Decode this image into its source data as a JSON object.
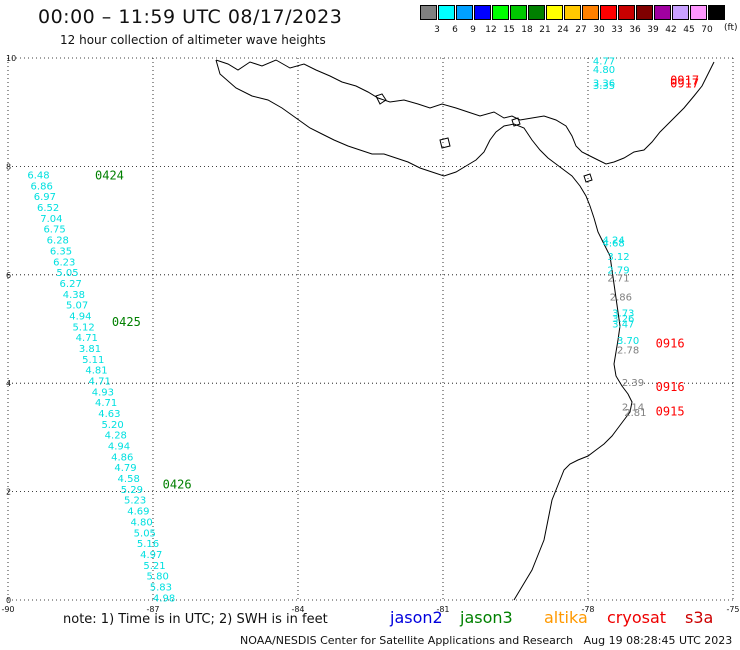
{
  "title": "00:00 – 11:59 UTC 08/17/2023",
  "subtitle": "12 hour collection of altimeter wave heights",
  "legend": {
    "unit_label": "(ft)",
    "bins": [
      {
        "label": "3",
        "color": "#808080"
      },
      {
        "label": "6",
        "color": "#00ffff"
      },
      {
        "label": "9",
        "color": "#00a0ff"
      },
      {
        "label": "12",
        "color": "#0000ff"
      },
      {
        "label": "15",
        "color": "#00ff00"
      },
      {
        "label": "18",
        "color": "#00c800"
      },
      {
        "label": "21",
        "color": "#008000"
      },
      {
        "label": "24",
        "color": "#ffff00"
      },
      {
        "label": "27",
        "color": "#ffc800"
      },
      {
        "label": "30",
        "color": "#ff8000"
      },
      {
        "label": "33",
        "color": "#ff0000"
      },
      {
        "label": "36",
        "color": "#c80000"
      },
      {
        "label": "39",
        "color": "#800000"
      },
      {
        "label": "42",
        "color": "#a000a0"
      },
      {
        "label": "45",
        "color": "#c8a0ff"
      },
      {
        "label": "70",
        "color": "#ff96ff"
      },
      {
        "label": "",
        "color": "#000000"
      }
    ]
  },
  "axes": {
    "x_ticks": [
      "-90",
      "-87",
      "-84",
      "-81",
      "-78",
      "-75"
    ],
    "y_ticks": [
      "10",
      "8",
      "6",
      "4",
      "2",
      "0"
    ],
    "x_range": [
      -90,
      -75
    ],
    "y_range": [
      0,
      10
    ]
  },
  "tracks": [
    {
      "values": [
        "6.48",
        "6.86",
        "6.97",
        "6.52",
        "7.04",
        "6.75",
        "6.28",
        "6.35",
        "6.23",
        "5.05",
        "6.27",
        "4.38",
        "5.07",
        "4.94",
        "5.12",
        "4.71",
        "3.81",
        "5.11",
        "4.81",
        "4.71",
        "4.93",
        "4.71",
        "4.63",
        "5.20",
        "4.28",
        "4.94",
        "4.86",
        "4.79",
        "4.58",
        "5.29",
        "5.23",
        "4.69",
        "4.80",
        "5.05",
        "5.16",
        "4.97",
        "5.21",
        "5.80",
        "5.83",
        "4.98"
      ],
      "color": "#00e0e0",
      "lon_start": -89.6,
      "lat_start": 7.85,
      "lon_end": -87.0,
      "lat_end": 0.05
    }
  ],
  "time_labels": [
    {
      "text": "0424",
      "color": "#008000",
      "lon": -88.2,
      "lat": 7.85
    },
    {
      "text": "0425",
      "color": "#008000",
      "lon": -87.85,
      "lat": 5.15
    },
    {
      "text": "0426",
      "color": "#008000",
      "lon": -86.8,
      "lat": 2.15
    },
    {
      "text": "0917",
      "color": "#ff0000",
      "lon": -76.3,
      "lat": 9.6
    },
    {
      "text": "0917",
      "color": "#ff0000",
      "lon": -76.3,
      "lat": 9.55
    },
    {
      "text": "0916",
      "color": "#ff0000",
      "lon": -76.6,
      "lat": 4.75
    },
    {
      "text": "0916",
      "color": "#ff0000",
      "lon": -76.6,
      "lat": 3.95
    },
    {
      "text": "0915",
      "color": "#ff0000",
      "lon": -76.6,
      "lat": 3.5
    }
  ],
  "coastal_values": [
    {
      "text": "4.77",
      "color": "#00e0e0",
      "lon": -77.9,
      "lat": 9.95
    },
    {
      "text": "4.80",
      "color": "#00e0e0",
      "lon": -77.9,
      "lat": 9.8
    },
    {
      "text": "3.36",
      "color": "#00e0e0",
      "lon": -77.9,
      "lat": 9.55
    },
    {
      "text": "3.35",
      "color": "#00e0e0",
      "lon": -77.9,
      "lat": 9.5
    },
    {
      "text": "4.24",
      "color": "#00e0e0",
      "lon": -77.7,
      "lat": 6.65
    },
    {
      "text": "4.68",
      "color": "#00e0e0",
      "lon": -77.7,
      "lat": 6.6
    },
    {
      "text": "3.12",
      "color": "#00e0e0",
      "lon": -77.6,
      "lat": 6.35
    },
    {
      "text": "2.79",
      "color": "#00e0e0",
      "lon": -77.6,
      "lat": 6.1
    },
    {
      "text": "2.71",
      "color": "#808080",
      "lon": -77.6,
      "lat": 5.95
    },
    {
      "text": "2.86",
      "color": "#808080",
      "lon": -77.55,
      "lat": 5.6
    },
    {
      "text": "3.73",
      "color": "#00e0e0",
      "lon": -77.5,
      "lat": 5.3
    },
    {
      "text": "3.26",
      "color": "#00e0e0",
      "lon": -77.5,
      "lat": 5.2
    },
    {
      "text": "3.47",
      "color": "#00e0e0",
      "lon": -77.5,
      "lat": 5.1
    },
    {
      "text": "3.70",
      "color": "#00e0e0",
      "lon": -77.4,
      "lat": 4.8
    },
    {
      "text": "2.78",
      "color": "#808080",
      "lon": -77.4,
      "lat": 4.62
    },
    {
      "text": "2.39",
      "color": "#808080",
      "lon": -77.3,
      "lat": 4.02
    },
    {
      "text": "2.14",
      "color": "#808080",
      "lon": -77.3,
      "lat": 3.57
    },
    {
      "text": "2.81",
      "color": "#808080",
      "lon": -77.25,
      "lat": 3.47
    }
  ],
  "note": "note: 1) Time is in UTC; 2) SWH is in feet",
  "satellites": [
    {
      "name": "jason2",
      "color": "#0000dd"
    },
    {
      "name": "jason3",
      "color": "#008000"
    },
    {
      "name": "altika",
      "color": "#ff9900"
    },
    {
      "name": "cryosat",
      "color": "#ee0000"
    },
    {
      "name": "s3a",
      "color": "#cc0000"
    }
  ],
  "footer": "NOAA/NESDIS Center for Satellite Applications and Research   Aug 19 08:28:45 UTC 2023"
}
